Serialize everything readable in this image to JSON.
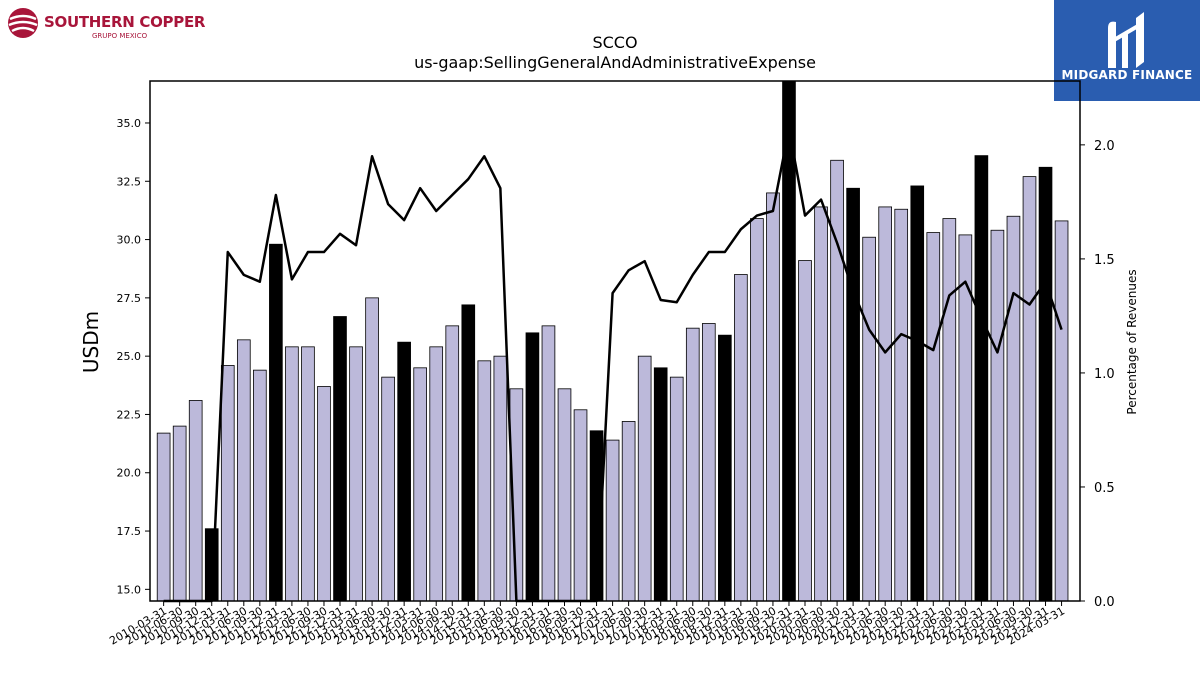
{
  "logos": {
    "left_name": "SOUTHERN COPPER",
    "left_sub": "GRUPO MEXICO",
    "right_brand": "MIDGARD FINANCE"
  },
  "colors": {
    "bar_fill": "#bcb9da",
    "bar_highlight": "#000000",
    "line": "#000000",
    "logo_red": "#a8153a",
    "logo_blue": "#2a5db0"
  },
  "chart_data": {
    "type": "bar",
    "title": "SCCO",
    "subtitle": "us-gaap:SellingGeneralAndAdministrativeExpense",
    "ylabel": "USDm",
    "y2label": "Percentage of Revenues",
    "ylim": [
      14.5,
      36.8
    ],
    "y2lim": [
      0.0,
      2.28
    ],
    "yticks": [
      "15.0",
      "17.5",
      "20.0",
      "22.5",
      "25.0",
      "27.5",
      "30.0",
      "32.5",
      "35.0"
    ],
    "y2ticks": [
      "0.0",
      "0.5",
      "1.0",
      "1.5",
      "2.0"
    ],
    "categories": [
      "2010-03-31",
      "2010-06-30",
      "2010-09-30",
      "2010-12-31",
      "2011-03-31",
      "2011-06-30",
      "2011-09-30",
      "2011-12-31",
      "2012-03-31",
      "2012-06-30",
      "2012-09-30",
      "2012-12-31",
      "2013-03-31",
      "2013-06-30",
      "2013-09-30",
      "2013-12-31",
      "2014-03-31",
      "2014-06-30",
      "2014-09-30",
      "2014-12-31",
      "2015-03-31",
      "2015-06-30",
      "2015-09-30",
      "2015-12-31",
      "2016-03-31",
      "2016-06-30",
      "2016-09-30",
      "2016-12-31",
      "2017-03-31",
      "2017-06-30",
      "2017-09-30",
      "2017-12-31",
      "2018-03-31",
      "2018-06-30",
      "2018-09-30",
      "2018-12-31",
      "2019-03-31",
      "2019-06-30",
      "2019-09-30",
      "2019-12-31",
      "2020-03-31",
      "2020-06-30",
      "2020-09-30",
      "2020-12-31",
      "2021-03-31",
      "2021-06-30",
      "2021-09-30",
      "2021-12-31",
      "2022-03-31",
      "2022-06-30",
      "2022-09-30",
      "2022-12-31",
      "2023-03-31",
      "2023-06-30",
      "2023-09-30",
      "2023-12-31",
      "2024-03-31"
    ],
    "series": [
      {
        "type": "bar",
        "values": [
          21.7,
          22.0,
          23.1,
          17.6,
          24.6,
          25.7,
          24.4,
          29.8,
          25.4,
          25.4,
          23.7,
          26.7,
          25.4,
          27.5,
          24.1,
          25.6,
          24.5,
          25.4,
          26.3,
          27.2,
          24.8,
          25.0,
          23.6,
          26.0,
          26.3,
          23.6,
          22.7,
          21.8,
          21.4,
          22.2,
          25.0,
          24.5,
          24.1,
          26.2,
          26.4,
          25.9,
          28.5,
          30.9,
          32.0,
          37.0,
          29.1,
          31.4,
          33.4,
          32.2,
          30.1,
          31.4,
          31.3,
          32.3,
          30.3,
          30.9,
          30.2,
          33.6,
          30.4,
          31.0,
          32.7,
          33.1,
          30.8
        ],
        "highlighted": [
          false,
          false,
          false,
          true,
          false,
          false,
          false,
          true,
          false,
          false,
          false,
          true,
          false,
          false,
          false,
          true,
          false,
          false,
          false,
          true,
          false,
          false,
          false,
          true,
          false,
          false,
          false,
          true,
          false,
          false,
          false,
          true,
          false,
          false,
          false,
          true,
          false,
          false,
          false,
          true,
          false,
          false,
          false,
          true,
          false,
          false,
          false,
          true,
          false,
          false,
          false,
          true,
          false,
          false,
          false,
          true,
          false
        ]
      },
      {
        "type": "line",
        "axis": "right",
        "values": [
          0.0,
          0.0,
          0.0,
          0.0,
          1.53,
          1.43,
          1.4,
          1.78,
          1.41,
          1.53,
          1.53,
          1.61,
          1.56,
          1.95,
          1.74,
          1.67,
          1.81,
          1.71,
          1.78,
          1.85,
          1.95,
          1.81,
          0.0,
          0.0,
          0.0,
          0.0,
          0.0,
          0.0,
          1.35,
          1.45,
          1.49,
          1.32,
          1.31,
          1.43,
          1.53,
          1.53,
          1.63,
          1.69,
          1.71,
          2.07,
          1.69,
          1.76,
          1.57,
          1.36,
          1.19,
          1.09,
          1.17,
          1.14,
          1.1,
          1.34,
          1.4,
          1.24,
          1.09,
          1.35,
          1.3,
          1.4,
          1.19
        ]
      }
    ]
  }
}
